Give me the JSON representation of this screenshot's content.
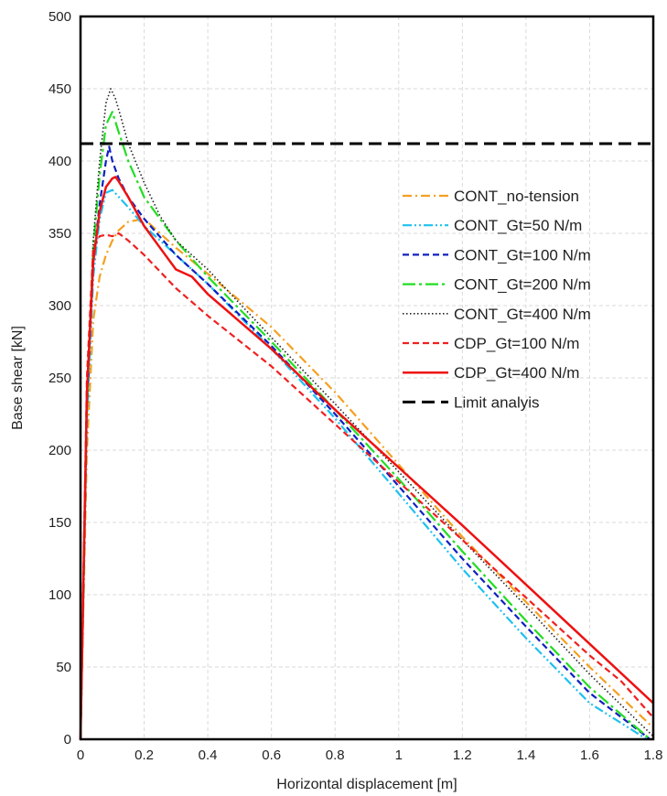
{
  "chart_data": {
    "type": "line",
    "title": "",
    "xlabel": "Horizontal displacement [m]",
    "ylabel": "Base shear [kN]",
    "xlim": [
      0,
      1.8
    ],
    "ylim": [
      0,
      500
    ],
    "xticks": [
      0,
      0.2,
      0.4,
      0.6,
      0.8,
      1,
      1.2,
      1.4,
      1.6,
      1.8
    ],
    "xtick_labels": [
      "0",
      "0.2",
      "0.4",
      "0.6",
      "0.8",
      "1",
      "1.2",
      "1.4",
      "1.6",
      "1.8"
    ],
    "yticks": [
      0,
      50,
      100,
      150,
      200,
      250,
      300,
      350,
      400,
      450,
      500
    ],
    "ytick_labels": [
      "0",
      "50",
      "100",
      "150",
      "200",
      "250",
      "300",
      "350",
      "400",
      "450",
      "500"
    ],
    "grid": true,
    "legend_position": "right-middle",
    "series": [
      {
        "name": "CONT_no-tension",
        "color": "#f4a020",
        "dash": "dashdot",
        "x": [
          0,
          0.02,
          0.04,
          0.06,
          0.08,
          0.1,
          0.12,
          0.15,
          0.2,
          0.3,
          0.4,
          0.6,
          0.8,
          1.0,
          1.2,
          1.4,
          1.6,
          1.8
        ],
        "y": [
          0,
          200,
          290,
          320,
          335,
          345,
          352,
          358,
          360,
          340,
          322,
          285,
          240,
          190,
          140,
          95,
          50,
          8
        ]
      },
      {
        "name": "CONT_Gt=50 N/m",
        "color": "#1fc0f0",
        "dash": "dashdotdot",
        "x": [
          0,
          0.02,
          0.04,
          0.06,
          0.08,
          0.1,
          0.15,
          0.2,
          0.3,
          0.4,
          0.6,
          0.8,
          1.0,
          1.2,
          1.4,
          1.6,
          1.78
        ],
        "y": [
          0,
          220,
          320,
          360,
          378,
          380,
          368,
          355,
          335,
          315,
          270,
          222,
          170,
          118,
          70,
          25,
          0
        ]
      },
      {
        "name": "CONT_Gt=100 N/m",
        "color": "#1020c0",
        "dash": "dash",
        "x": [
          0,
          0.02,
          0.04,
          0.06,
          0.08,
          0.09,
          0.1,
          0.12,
          0.15,
          0.2,
          0.3,
          0.4,
          0.6,
          0.8,
          1.0,
          1.2,
          1.4,
          1.6,
          1.79
        ],
        "y": [
          0,
          230,
          330,
          370,
          400,
          410,
          400,
          388,
          375,
          360,
          335,
          315,
          272,
          225,
          175,
          125,
          78,
          32,
          0
        ]
      },
      {
        "name": "CONT_Gt=200 N/m",
        "color": "#22dd22",
        "dash": "longdashdot",
        "x": [
          0,
          0.02,
          0.04,
          0.06,
          0.08,
          0.1,
          0.12,
          0.15,
          0.2,
          0.3,
          0.4,
          0.6,
          0.8,
          1.0,
          1.2,
          1.4,
          1.6,
          1.79
        ],
        "y": [
          0,
          230,
          340,
          390,
          425,
          434,
          420,
          400,
          375,
          345,
          320,
          275,
          228,
          180,
          130,
          82,
          36,
          0
        ]
      },
      {
        "name": "CONT_Gt=400 N/m",
        "color": "#222222",
        "dash": "dot",
        "x": [
          0,
          0.02,
          0.04,
          0.06,
          0.08,
          0.095,
          0.11,
          0.13,
          0.15,
          0.2,
          0.25,
          0.3,
          0.4,
          0.6,
          0.8,
          1.0,
          1.2,
          1.4,
          1.6,
          1.8
        ],
        "y": [
          0,
          230,
          345,
          400,
          440,
          450,
          443,
          428,
          412,
          385,
          362,
          345,
          325,
          278,
          232,
          185,
          138,
          92,
          45,
          2
        ]
      },
      {
        "name": "CDP_Gt=100 N/m",
        "color": "#f02020",
        "dash": "dash",
        "x": [
          0,
          0.02,
          0.04,
          0.06,
          0.08,
          0.1,
          0.12,
          0.15,
          0.2,
          0.3,
          0.4,
          0.6,
          0.8,
          1.0,
          1.2,
          1.4,
          1.6,
          1.7,
          1.8
        ],
        "y": [
          0,
          250,
          340,
          348,
          349,
          348,
          350,
          345,
          335,
          312,
          293,
          258,
          218,
          178,
          138,
          98,
          58,
          40,
          15
        ]
      },
      {
        "name": "CDP_Gt=400 N/m",
        "color": "#ee1111",
        "dash": "solid",
        "x": [
          0,
          0.02,
          0.04,
          0.06,
          0.08,
          0.1,
          0.11,
          0.12,
          0.15,
          0.2,
          0.25,
          0.3,
          0.35,
          0.4,
          0.6,
          0.8,
          1.0,
          1.2,
          1.4,
          1.6,
          1.8
        ],
        "y": [
          0,
          240,
          330,
          365,
          382,
          388,
          389,
          386,
          375,
          355,
          340,
          325,
          320,
          308,
          270,
          228,
          188,
          148,
          107,
          66,
          25
        ]
      },
      {
        "name": "Limit analyis",
        "color": "#000000",
        "dash": "bigdash",
        "x": [
          0,
          1.8
        ],
        "y": [
          412,
          412
        ]
      }
    ]
  }
}
